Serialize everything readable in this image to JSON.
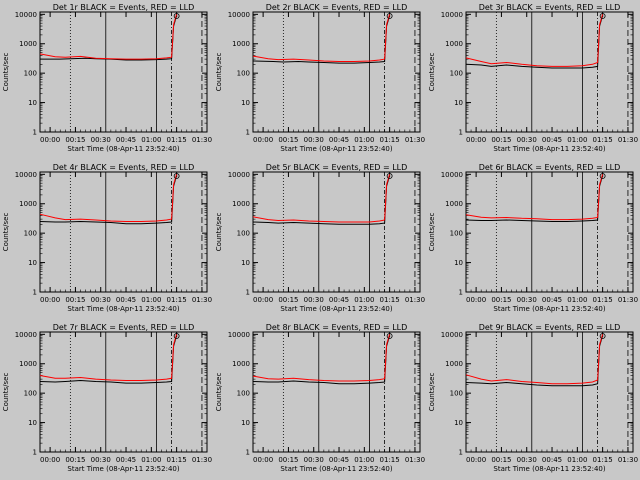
{
  "figure": {
    "background": "#c8c8c8",
    "events_color": "#000000",
    "lld_color": "#ff0000"
  },
  "chart_data": [
    {
      "type": "line",
      "title": "Det 1r BLACK = Events, RED = LLD",
      "xlabel": "Start Time (08-Apr-11 23:52:40)",
      "ylabel": "Counts/sec",
      "yscale": "log",
      "ylim": [
        1,
        12000
      ],
      "xlim": [
        -0.1,
        1.55
      ],
      "xtick_labels": [
        "00:00",
        "00:15",
        "00:30",
        "00:45",
        "01:00",
        "01:15",
        "01:30"
      ],
      "ytick_labels": [
        "1",
        "10",
        "100",
        "1000",
        "10000"
      ],
      "series": [
        {
          "color": "#000000",
          "x": [
            -0.1,
            0.1,
            0.2,
            0.35,
            0.45,
            0.6,
            0.75,
            0.9,
            1.05,
            1.15,
            1.2,
            1.22,
            1.25
          ],
          "y": [
            300,
            300,
            310,
            320,
            310,
            300,
            280,
            280,
            290,
            300,
            310,
            4000,
            9000
          ]
        },
        {
          "color": "#ff0000",
          "x": [
            -0.1,
            0.05,
            0.15,
            0.3,
            0.45,
            0.6,
            0.75,
            0.9,
            1.05,
            1.15,
            1.2,
            1.22,
            1.25
          ],
          "y": [
            450,
            360,
            350,
            370,
            320,
            310,
            300,
            300,
            310,
            330,
            350,
            4500,
            10000
          ]
        }
      ]
    },
    {
      "type": "line",
      "title": "Det 2r BLACK = Events, RED = LLD",
      "xlabel": "Start Time (08-Apr-11 23:52:40)",
      "ylabel": "Counts/sec",
      "yscale": "log",
      "ylim": [
        1,
        12000
      ],
      "xlim": [
        -0.1,
        1.55
      ],
      "xtick_labels": [
        "00:00",
        "00:15",
        "00:30",
        "00:45",
        "01:00",
        "01:15",
        "01:30"
      ],
      "ytick_labels": [
        "1",
        "10",
        "100",
        "1000",
        "10000"
      ],
      "series": [
        {
          "color": "#000000",
          "x": [
            -0.1,
            0.1,
            0.2,
            0.35,
            0.45,
            0.6,
            0.75,
            0.9,
            1.05,
            1.15,
            1.2,
            1.22,
            1.25
          ],
          "y": [
            260,
            250,
            240,
            250,
            240,
            230,
            220,
            220,
            230,
            240,
            250,
            4000,
            9000
          ]
        },
        {
          "color": "#ff0000",
          "x": [
            -0.1,
            0.05,
            0.15,
            0.3,
            0.45,
            0.6,
            0.75,
            0.9,
            1.05,
            1.15,
            1.2,
            1.22,
            1.25
          ],
          "y": [
            380,
            310,
            290,
            300,
            280,
            260,
            250,
            250,
            260,
            280,
            300,
            4500,
            10000
          ]
        }
      ]
    },
    {
      "type": "line",
      "title": "Det 3r BLACK = Events, RED = LLD",
      "xlabel": "Start Time (08-Apr-11 23:52:40)",
      "ylabel": "Counts/sec",
      "yscale": "log",
      "ylim": [
        1,
        12000
      ],
      "xlim": [
        -0.1,
        1.55
      ],
      "xtick_labels": [
        "00:00",
        "00:15",
        "00:30",
        "00:45",
        "01:00",
        "01:15",
        "01:30"
      ],
      "ytick_labels": [
        "1",
        "10",
        "100",
        "1000",
        "10000"
      ],
      "series": [
        {
          "color": "#000000",
          "x": [
            -0.1,
            0.05,
            0.15,
            0.3,
            0.45,
            0.6,
            0.75,
            0.9,
            1.05,
            1.15,
            1.2,
            1.22,
            1.25
          ],
          "y": [
            200,
            190,
            170,
            190,
            170,
            160,
            150,
            150,
            150,
            160,
            170,
            4000,
            9000
          ]
        },
        {
          "color": "#ff0000",
          "x": [
            -0.1,
            0.05,
            0.15,
            0.3,
            0.45,
            0.6,
            0.75,
            0.9,
            1.05,
            1.15,
            1.2,
            1.22,
            1.25
          ],
          "y": [
            330,
            250,
            210,
            230,
            200,
            180,
            170,
            170,
            180,
            200,
            230,
            4500,
            10000
          ]
        }
      ]
    },
    {
      "type": "line",
      "title": "Det 4r BLACK = Events, RED = LLD",
      "xlabel": "Start Time (08-Apr-11 23:52:40)",
      "ylabel": "Counts/sec",
      "yscale": "log",
      "ylim": [
        1,
        12000
      ],
      "xlim": [
        -0.1,
        1.55
      ],
      "xtick_labels": [
        "00:00",
        "00:15",
        "00:30",
        "00:45",
        "01:00",
        "01:15",
        "01:30"
      ],
      "ytick_labels": [
        "1",
        "10",
        "100",
        "1000",
        "10000"
      ],
      "series": [
        {
          "color": "#000000",
          "x": [
            -0.1,
            0.05,
            0.15,
            0.3,
            0.45,
            0.6,
            0.75,
            0.9,
            1.05,
            1.15,
            1.2,
            1.22,
            1.25
          ],
          "y": [
            250,
            240,
            240,
            250,
            240,
            230,
            210,
            210,
            220,
            230,
            240,
            4000,
            9000
          ]
        },
        {
          "color": "#ff0000",
          "x": [
            -0.1,
            0.05,
            0.15,
            0.3,
            0.45,
            0.6,
            0.75,
            0.9,
            1.05,
            1.15,
            1.2,
            1.22,
            1.25
          ],
          "y": [
            440,
            330,
            290,
            300,
            280,
            260,
            250,
            250,
            260,
            280,
            300,
            4500,
            10000
          ]
        }
      ]
    },
    {
      "type": "line",
      "title": "Det 5r BLACK = Events, RED = LLD",
      "xlabel": "Start Time (08-Apr-11 23:52:40)",
      "ylabel": "Counts/sec",
      "yscale": "log",
      "ylim": [
        1,
        12000
      ],
      "xlim": [
        -0.1,
        1.55
      ],
      "xtick_labels": [
        "00:00",
        "00:15",
        "00:30",
        "00:45",
        "01:00",
        "01:15",
        "01:30"
      ],
      "ytick_labels": [
        "1",
        "10",
        "100",
        "1000",
        "10000"
      ],
      "series": [
        {
          "color": "#000000",
          "x": [
            -0.1,
            0.05,
            0.15,
            0.3,
            0.45,
            0.6,
            0.75,
            0.9,
            1.05,
            1.15,
            1.2,
            1.22,
            1.25
          ],
          "y": [
            240,
            230,
            220,
            230,
            220,
            210,
            200,
            200,
            200,
            210,
            220,
            4000,
            9000
          ]
        },
        {
          "color": "#ff0000",
          "x": [
            -0.1,
            0.05,
            0.15,
            0.3,
            0.45,
            0.6,
            0.75,
            0.9,
            1.05,
            1.15,
            1.2,
            1.22,
            1.25
          ],
          "y": [
            360,
            290,
            270,
            280,
            260,
            250,
            240,
            240,
            240,
            260,
            280,
            4500,
            10000
          ]
        }
      ]
    },
    {
      "type": "line",
      "title": "Det 6r BLACK = Events, RED = LLD",
      "xlabel": "Start Time (08-Apr-11 23:52:40)",
      "ylabel": "Counts/sec",
      "yscale": "log",
      "ylim": [
        1,
        12000
      ],
      "xlim": [
        -0.1,
        1.55
      ],
      "xtick_labels": [
        "00:00",
        "00:15",
        "00:30",
        "00:45",
        "01:00",
        "01:15",
        "01:30"
      ],
      "ytick_labels": [
        "1",
        "10",
        "100",
        "1000",
        "10000"
      ],
      "series": [
        {
          "color": "#000000",
          "x": [
            -0.1,
            0.05,
            0.15,
            0.3,
            0.45,
            0.6,
            0.75,
            0.9,
            1.05,
            1.15,
            1.2,
            1.22,
            1.25
          ],
          "y": [
            280,
            270,
            270,
            280,
            270,
            260,
            250,
            250,
            260,
            270,
            280,
            4000,
            9000
          ]
        },
        {
          "color": "#ff0000",
          "x": [
            -0.1,
            0.05,
            0.15,
            0.3,
            0.45,
            0.6,
            0.75,
            0.9,
            1.05,
            1.15,
            1.2,
            1.22,
            1.25
          ],
          "y": [
            420,
            350,
            330,
            340,
            320,
            310,
            290,
            290,
            300,
            320,
            340,
            4500,
            10000
          ]
        }
      ]
    },
    {
      "type": "line",
      "title": "Det 7r BLACK = Events, RED = LLD",
      "xlabel": "Start Time (08-Apr-11 23:52:40)",
      "ylabel": "Counts/sec",
      "yscale": "log",
      "ylim": [
        1,
        12000
      ],
      "xlim": [
        -0.1,
        1.55
      ],
      "xtick_labels": [
        "00:00",
        "00:15",
        "00:30",
        "00:45",
        "01:00",
        "01:15",
        "01:30"
      ],
      "ytick_labels": [
        "1",
        "10",
        "100",
        "1000",
        "10000"
      ],
      "series": [
        {
          "color": "#000000",
          "x": [
            -0.1,
            0.05,
            0.15,
            0.3,
            0.45,
            0.6,
            0.75,
            0.9,
            1.05,
            1.15,
            1.2,
            1.22,
            1.25
          ],
          "y": [
            250,
            240,
            250,
            270,
            250,
            240,
            220,
            220,
            230,
            240,
            250,
            4000,
            9000
          ]
        },
        {
          "color": "#ff0000",
          "x": [
            -0.1,
            0.05,
            0.15,
            0.3,
            0.45,
            0.6,
            0.75,
            0.9,
            1.05,
            1.15,
            1.2,
            1.22,
            1.25
          ],
          "y": [
            400,
            320,
            320,
            340,
            300,
            280,
            270,
            270,
            280,
            300,
            320,
            4500,
            10000
          ]
        }
      ]
    },
    {
      "type": "line",
      "title": "Det 8r BLACK = Events, RED = LLD",
      "xlabel": "Start Time (08-Apr-11 23:52:40)",
      "ylabel": "Counts/sec",
      "yscale": "log",
      "ylim": [
        1,
        12000
      ],
      "xlim": [
        -0.1,
        1.55
      ],
      "xtick_labels": [
        "00:00",
        "00:15",
        "00:30",
        "00:45",
        "01:00",
        "01:15",
        "01:30"
      ],
      "ytick_labels": [
        "1",
        "10",
        "100",
        "1000",
        "10000"
      ],
      "series": [
        {
          "color": "#000000",
          "x": [
            -0.1,
            0.05,
            0.15,
            0.3,
            0.45,
            0.6,
            0.75,
            0.9,
            1.05,
            1.15,
            1.2,
            1.22,
            1.25
          ],
          "y": [
            250,
            240,
            240,
            260,
            240,
            230,
            210,
            210,
            220,
            230,
            240,
            4000,
            9000
          ]
        },
        {
          "color": "#ff0000",
          "x": [
            -0.1,
            0.05,
            0.15,
            0.3,
            0.45,
            0.6,
            0.75,
            0.9,
            1.05,
            1.15,
            1.2,
            1.22,
            1.25
          ],
          "y": [
            380,
            310,
            300,
            320,
            290,
            270,
            260,
            260,
            270,
            290,
            310,
            4500,
            10000
          ]
        }
      ]
    },
    {
      "type": "line",
      "title": "Det 9r BLACK = Events, RED = LLD",
      "xlabel": "Start Time (08-Apr-11 23:52:40)",
      "ylabel": "Counts/sec",
      "yscale": "log",
      "ylim": [
        1,
        12000
      ],
      "xlim": [
        -0.1,
        1.55
      ],
      "xtick_labels": [
        "00:00",
        "00:15",
        "00:30",
        "00:45",
        "01:00",
        "01:15",
        "01:30"
      ],
      "ytick_labels": [
        "1",
        "10",
        "100",
        "1000",
        "10000"
      ],
      "series": [
        {
          "color": "#000000",
          "x": [
            -0.1,
            0.05,
            0.15,
            0.3,
            0.45,
            0.6,
            0.75,
            0.9,
            1.05,
            1.15,
            1.2,
            1.22,
            1.25
          ],
          "y": [
            230,
            220,
            210,
            230,
            210,
            190,
            180,
            180,
            180,
            190,
            210,
            4000,
            9000
          ]
        },
        {
          "color": "#ff0000",
          "x": [
            -0.1,
            0.05,
            0.15,
            0.3,
            0.45,
            0.6,
            0.75,
            0.9,
            1.05,
            1.15,
            1.2,
            1.22,
            1.25
          ],
          "y": [
            420,
            300,
            260,
            290,
            250,
            230,
            210,
            210,
            220,
            240,
            280,
            4500,
            10000
          ]
        }
      ]
    }
  ]
}
